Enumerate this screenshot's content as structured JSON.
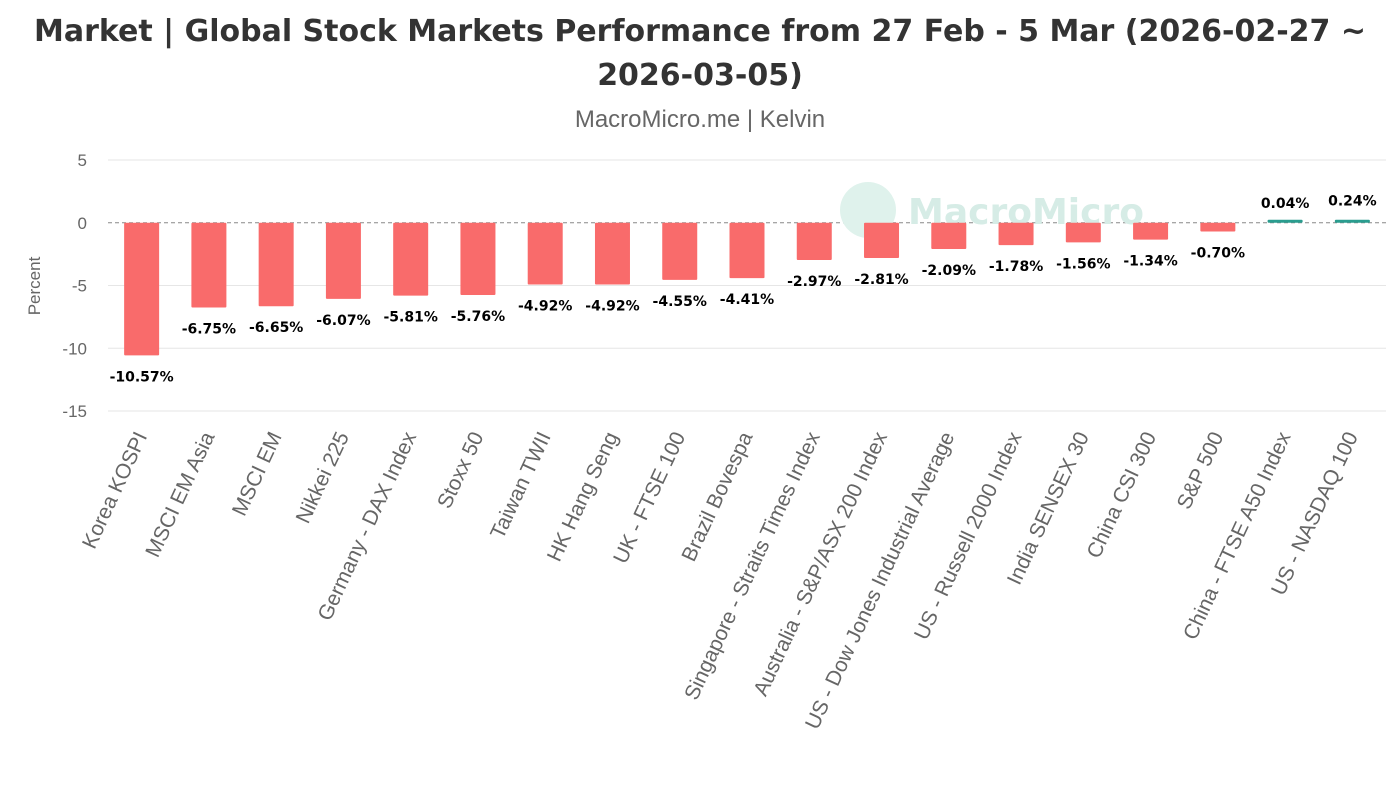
{
  "chart_data": {
    "type": "bar",
    "title": "Market | Global Stock Markets Performance from 27 Feb - 5 Mar (2026-02-27 ~ 2026-03-05)",
    "subtitle": "MacroMicro.me | Kelvin",
    "ylabel": "Percent",
    "xlabel": "",
    "ylim": [
      -15,
      5
    ],
    "yticks": [
      5,
      0,
      -5,
      -10,
      -15
    ],
    "grid": true,
    "legend": "none",
    "zero_line": "dashed",
    "watermark": "MacroMicro",
    "colors": {
      "negative": "#f96b6b",
      "positive": "#2a9d8f",
      "grid": "#e6e6e6",
      "zero": "#888888"
    },
    "categories": [
      "Korea KOSPI",
      "MSCI EM Asia",
      "MSCI EM",
      "Nikkei 225",
      "Germany - DAX Index",
      "Stoxx 50",
      "Taiwan TWII",
      "HK Hang Seng",
      "UK - FTSE 100",
      "Brazil Bovespa",
      "Singapore - Straits Times Index",
      "Australia - S&P/ASX 200 Index",
      "US - Dow Jones Industrial Average",
      "US - Russell 2000 Index",
      "India SENSEX 30",
      "China CSI 300",
      "S&P 500",
      "China - FTSE A50 Index",
      "US - NASDAQ 100"
    ],
    "values": [
      -10.57,
      -6.75,
      -6.65,
      -6.07,
      -5.81,
      -5.76,
      -4.92,
      -4.92,
      -4.55,
      -4.41,
      -2.97,
      -2.81,
      -2.09,
      -1.78,
      -1.56,
      -1.34,
      -0.7,
      0.04,
      0.24
    ],
    "labels": [
      "-10.57%",
      "-6.75%",
      "-6.65%",
      "-6.07%",
      "-5.81%",
      "-5.76%",
      "-4.92%",
      "-4.92%",
      "-4.55%",
      "-4.41%",
      "-2.97%",
      "-2.81%",
      "-2.09%",
      "-1.78%",
      "-1.56%",
      "-1.34%",
      "-0.70%",
      "0.04%",
      "0.24%"
    ]
  }
}
